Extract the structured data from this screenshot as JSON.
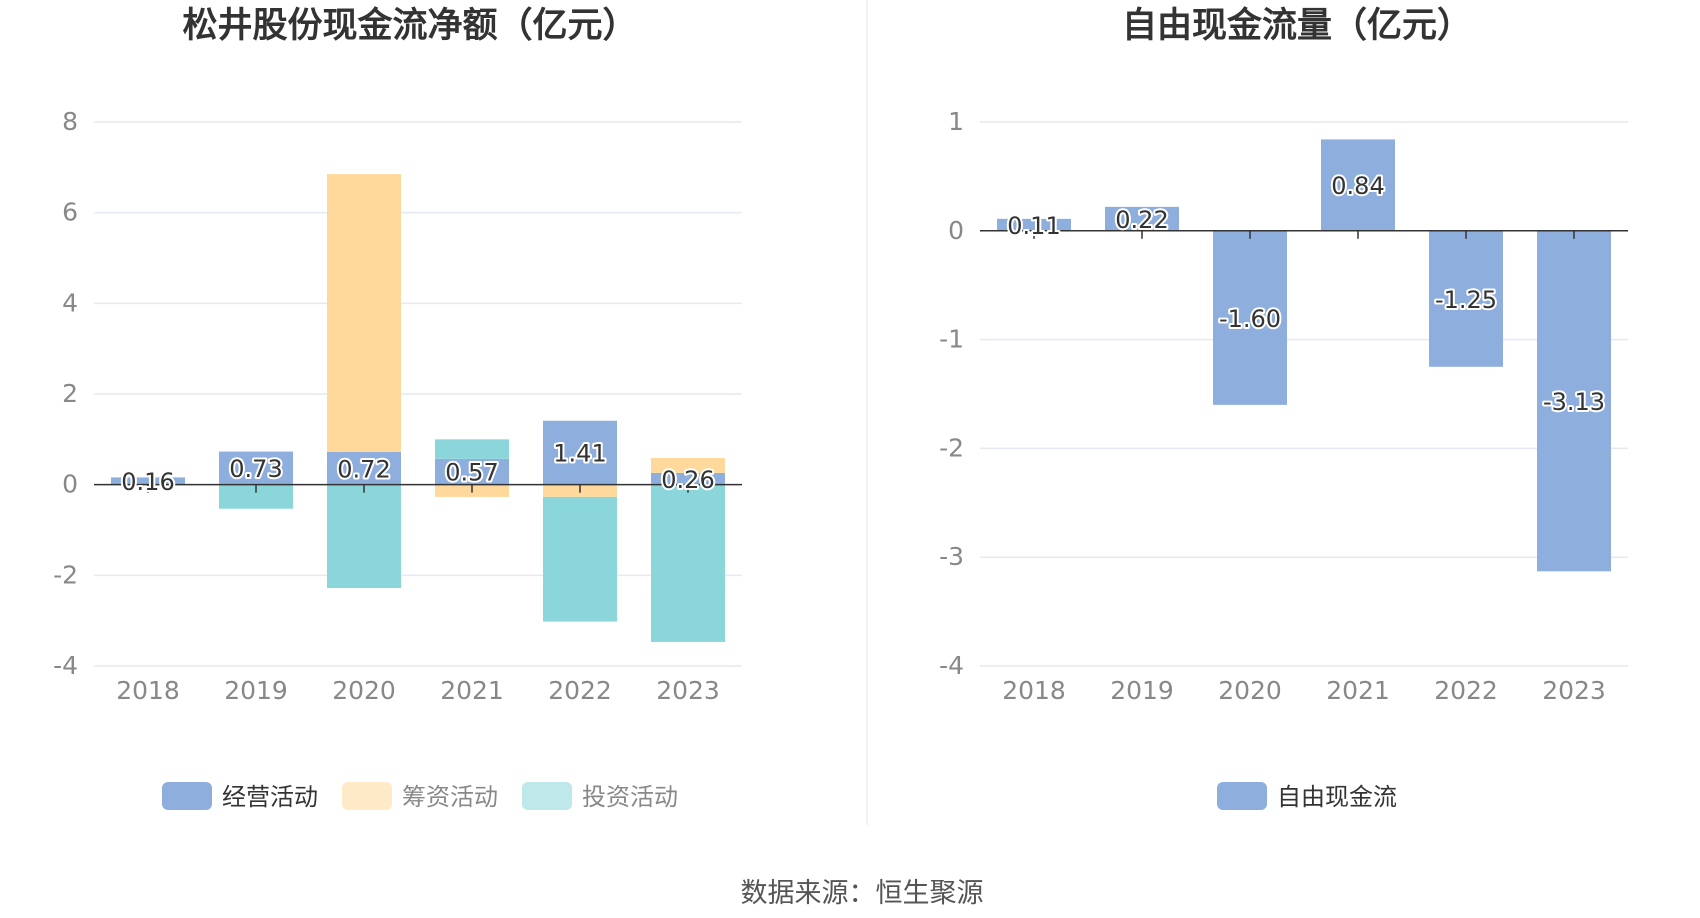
{
  "source_text": "数据来源：恒生聚源",
  "colors": {
    "operating": "#8eaedd",
    "financing": "#ffd99b",
    "investing": "#8bd6da",
    "free_cash_flow": "#8eaedd",
    "legend_inactive": "#888888",
    "legend_active": "#333333"
  },
  "chart_data": [
    {
      "type": "bar",
      "stacked": true,
      "title": "松井股份现金流净额（亿元）",
      "categories": [
        "2018",
        "2019",
        "2020",
        "2021",
        "2022",
        "2023"
      ],
      "ylim": [
        -4,
        8
      ],
      "yticks": [
        "8",
        "6",
        "4",
        "2",
        "0",
        "-2",
        "-4"
      ],
      "grid": true,
      "legend_position": "bottom",
      "series": [
        {
          "name": "经营活动",
          "key": "operating",
          "values": [
            0.16,
            0.73,
            0.72,
            0.57,
            1.41,
            0.26
          ]
        },
        {
          "name": "筹资活动",
          "key": "financing",
          "values": [
            0.0,
            0.0,
            6.13,
            -0.27,
            -0.27,
            0.33
          ]
        },
        {
          "name": "投资活动",
          "key": "investing",
          "values": [
            0.0,
            -0.53,
            -2.28,
            0.43,
            -2.75,
            -3.47
          ]
        }
      ],
      "data_labels": [
        "0.16",
        "0.73",
        "0.72",
        "0.57",
        "1.41",
        "0.26"
      ]
    },
    {
      "type": "bar",
      "title": "自由现金流量（亿元）",
      "categories": [
        "2018",
        "2019",
        "2020",
        "2021",
        "2022",
        "2023"
      ],
      "ylim": [
        -4,
        1
      ],
      "yticks": [
        "1",
        "0",
        "-1",
        "-2",
        "-3",
        "-4"
      ],
      "grid": true,
      "legend_position": "bottom",
      "series": [
        {
          "name": "自由现金流",
          "key": "free_cash_flow",
          "values": [
            0.11,
            0.22,
            -1.6,
            0.84,
            -1.25,
            -3.13
          ]
        }
      ],
      "data_labels": [
        "0.11",
        "0.22",
        "-1.60",
        "0.84",
        "-1.25",
        "-3.13"
      ]
    }
  ]
}
